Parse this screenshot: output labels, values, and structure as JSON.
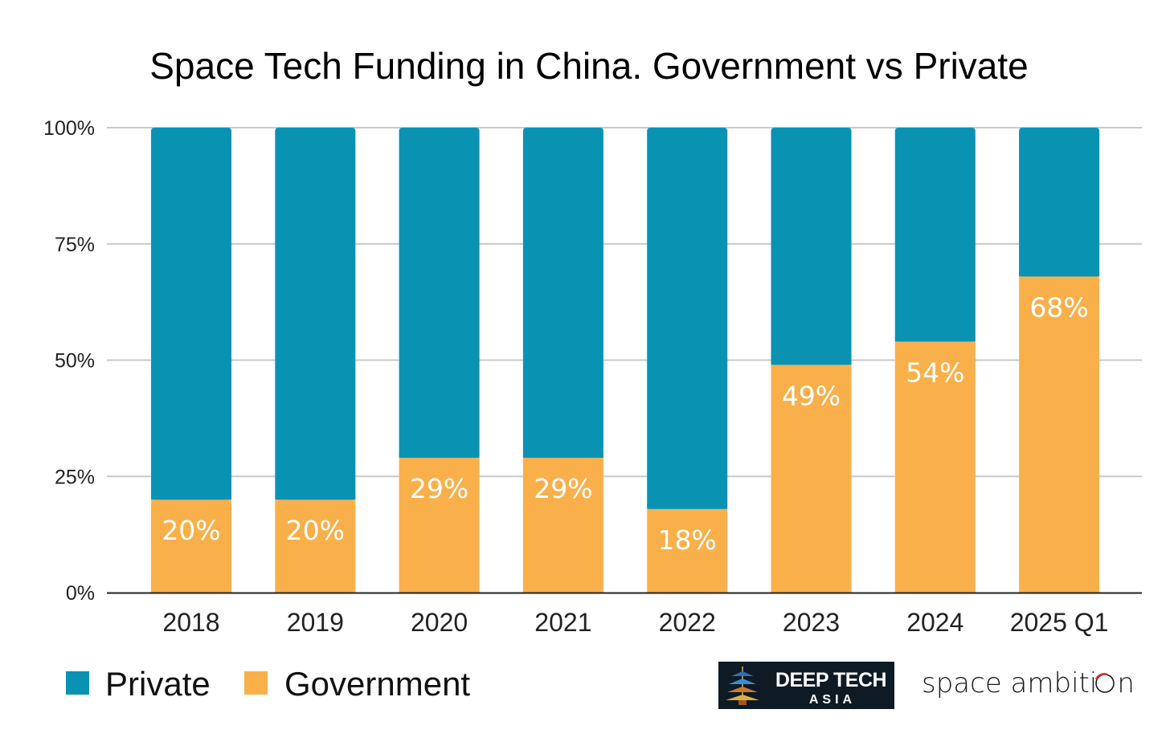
{
  "chart_data": {
    "type": "bar",
    "stacked": true,
    "title": "Space Tech Funding in China. Government vs Private",
    "categories": [
      "2018",
      "2019",
      "2020",
      "2021",
      "2022",
      "2023",
      "2024",
      "2025 Q1"
    ],
    "series": [
      {
        "name": "Government",
        "color": "#F9B04A",
        "values": [
          20,
          20,
          29,
          29,
          18,
          49,
          54,
          68
        ],
        "data_labels": [
          "20%",
          "20%",
          "29%",
          "29%",
          "18%",
          "49%",
          "54%",
          "68%"
        ]
      },
      {
        "name": "Private",
        "color": "#0A92B3",
        "values": [
          80,
          80,
          71,
          71,
          82,
          51,
          46,
          32
        ]
      }
    ],
    "ylim": [
      0,
      100
    ],
    "yticks": [
      0,
      25,
      50,
      75,
      100
    ],
    "ytick_labels": [
      "0%",
      "25%",
      "50%",
      "75%",
      "100%"
    ],
    "grid": true,
    "legend": {
      "placement": "bottom-left",
      "entries": [
        "Private",
        "Government"
      ]
    }
  },
  "logos": {
    "deep_tech_asia": {
      "line1": "DEEP TECH",
      "line2": "ASIA"
    },
    "space_ambition": {
      "text": "space ambiti",
      "suffix": "n"
    }
  },
  "colors": {
    "private": "#0A92B3",
    "government": "#F9B04A",
    "gridline": "#c8c8c8",
    "axis": "#222222"
  }
}
